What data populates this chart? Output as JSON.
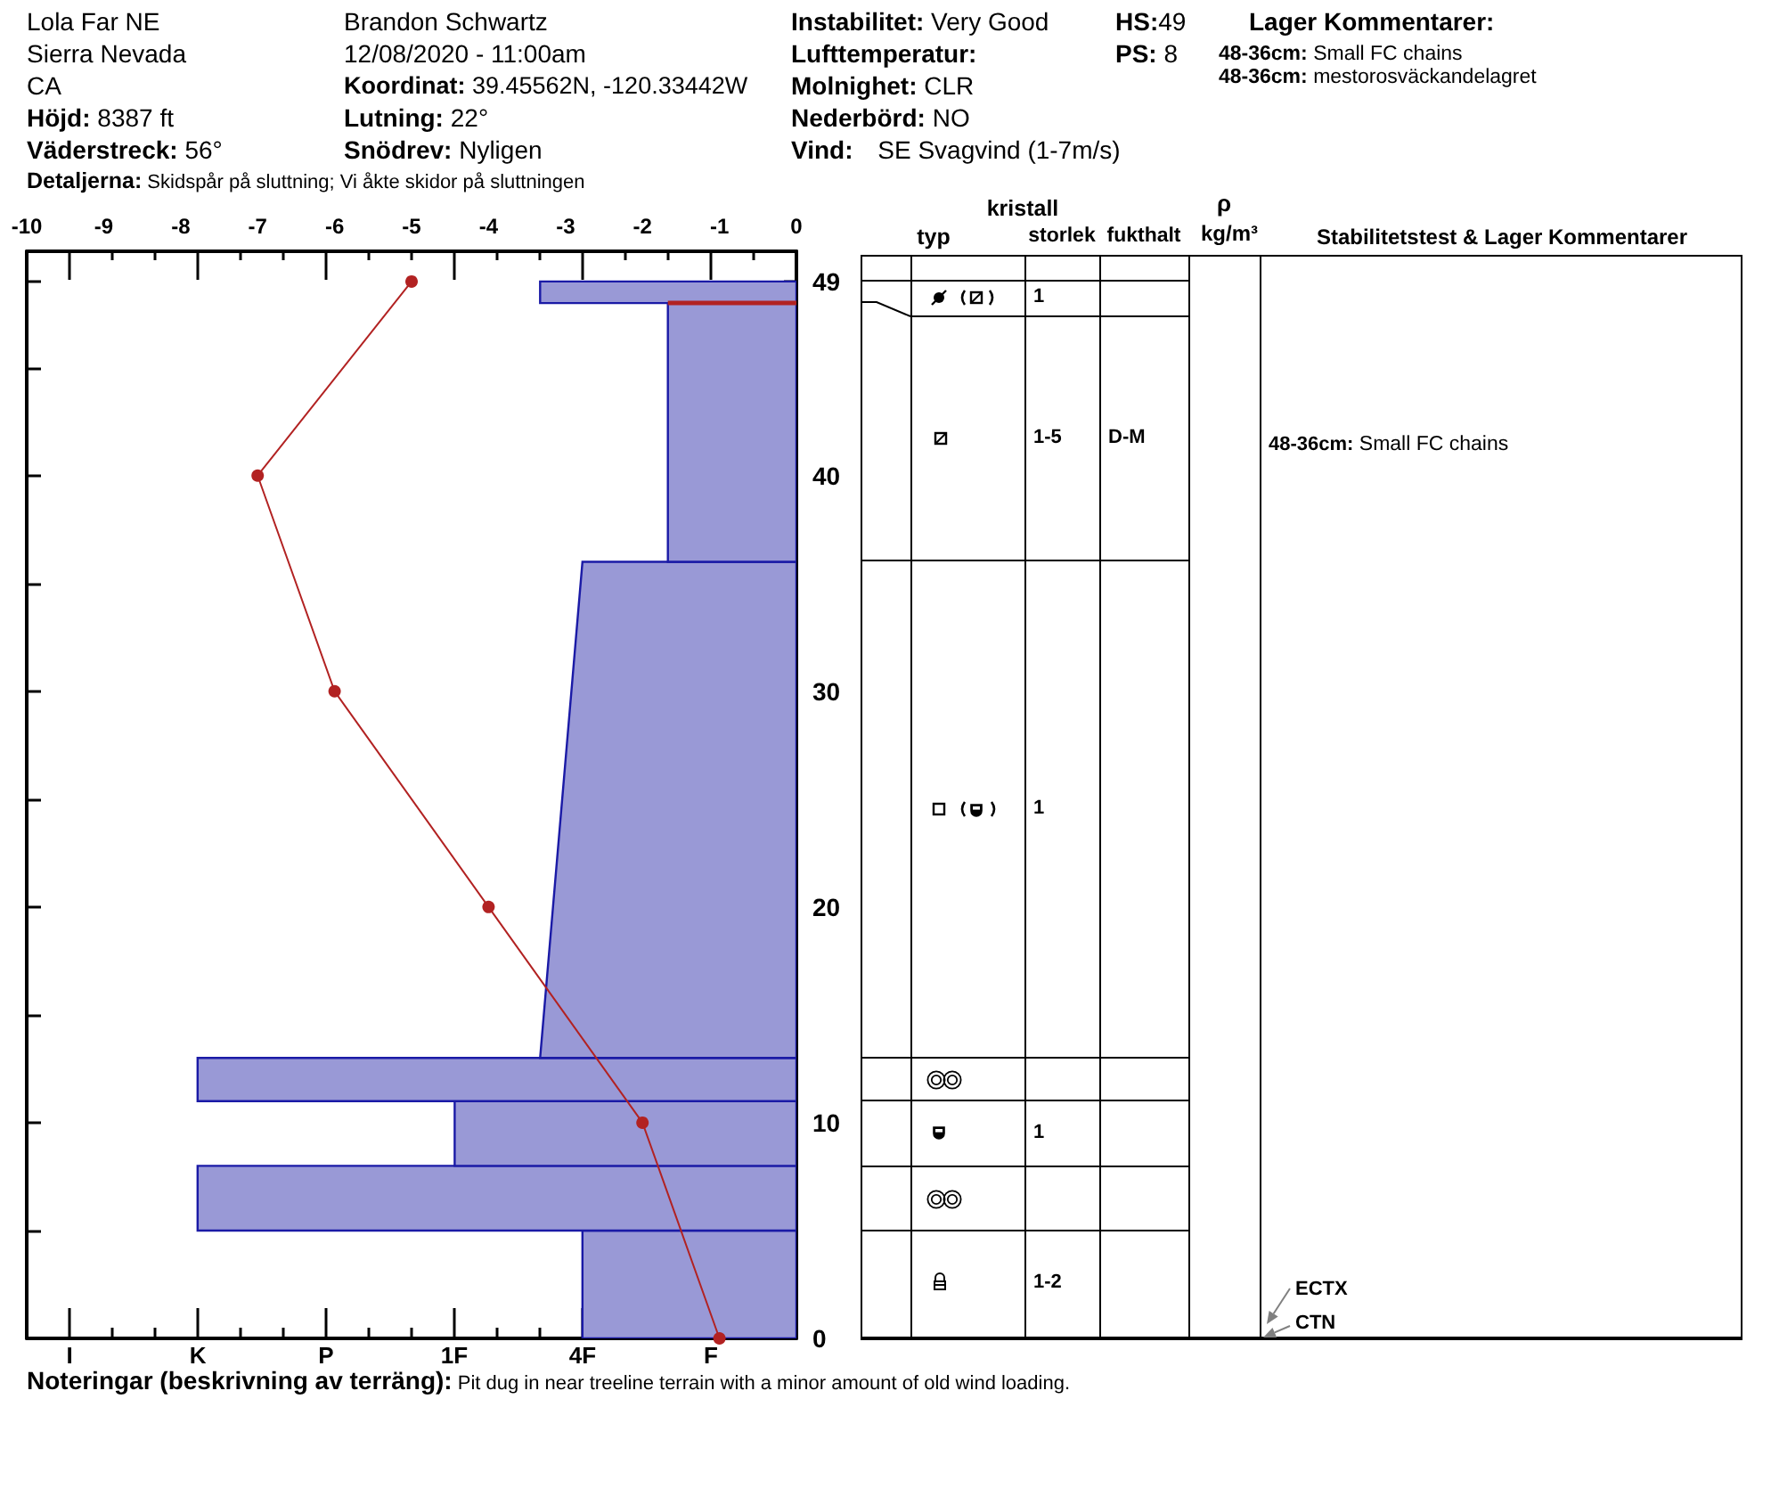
{
  "chart_data": [
    {
      "type": "other",
      "annotations": [
        "Lola Far NE",
        "Sierra Nevada",
        "CA",
        "Höjd: 8387 ft",
        "Väderstreck: 56°",
        "Detaljerna: Skidspår på sluttning; Vi åkte skidor på sluttningen",
        "Brandon Schwartz",
        "12/08/2020 - 11:00am",
        "Koordinat: 39.45562N, -120.33442W",
        "Lutning: 22°",
        "Snödrev: Nyligen",
        "Instabilitet: Very Good",
        "Lufttemperatur:",
        "Molnighet: CLR",
        "Nederbörd: NO",
        "Vind: SE Svagvind (1-7m/s)",
        "HS:49",
        "PS: 8",
        "Lager Kommentarer:",
        "48-36cm: Small FC chains",
        "48-36cm: mestorosväckandelagret"
      ]
    },
    {
      "type": "line",
      "categories": [
        null,
        "I",
        null,
        null,
        "K",
        null,
        null,
        "P",
        null,
        null,
        "1F",
        null,
        null,
        "4F",
        null,
        null,
        "F",
        null,
        null
      ],
      "x2lim": [
        -10,
        0
      ],
      "x2ticks": [
        -10,
        -9,
        -8,
        -7,
        -6,
        -5,
        -4,
        -3,
        -2,
        -1,
        0
      ],
      "ylim": [
        0,
        50.4
      ],
      "yticks": [
        0,
        {
          "value": 5,
          "label": null
        },
        10,
        {
          "value": 15,
          "label": null
        },
        20,
        {
          "value": 25,
          "label": null
        },
        30,
        {
          "value": 35,
          "label": null
        },
        40,
        {
          "value": 45,
          "label": null
        },
        49
      ],
      "series": [
        {
          "type": "area",
          "axis": "x2",
          "color": "#9999d6",
          "x": [
            0,
            -2.78,
            -2.78,
            0
          ],
          "values": [
            0,
            0,
            5,
            5
          ]
        },
        {
          "type": "area",
          "axis": "x2",
          "color": "#9999d6",
          "x": [
            0,
            -7.78,
            -7.78,
            0
          ],
          "values": [
            5,
            5,
            8,
            8
          ]
        },
        {
          "type": "area",
          "axis": "x2",
          "color": "#9999d6",
          "x": [
            0,
            -4.44,
            -4.44,
            0
          ],
          "values": [
            8,
            8,
            11,
            11
          ]
        },
        {
          "type": "area",
          "axis": "x2",
          "color": "#9999d6",
          "x": [
            0,
            -7.78,
            -7.78,
            0
          ],
          "values": [
            11,
            11,
            13,
            13
          ]
        },
        {
          "type": "area",
          "axis": "x2",
          "color": "#9999d6",
          "x": [
            0,
            -3.33,
            -2.78,
            0
          ],
          "values": [
            13,
            13,
            36,
            36
          ]
        },
        {
          "type": "area",
          "axis": "x2",
          "color": "#9999d6",
          "x": [
            0,
            -1.67,
            -1.67,
            0
          ],
          "values": [
            36,
            36,
            48,
            48
          ]
        },
        {
          "type": "area",
          "axis": "x2",
          "color": "#9999d6",
          "x": [
            0,
            -3.33,
            -3.33,
            0
          ],
          "values": [
            48,
            48,
            49,
            49
          ]
        },
        {
          "type": "line",
          "axis": "x2",
          "marker": "none",
          "color": "#b22222",
          "x": [
            -1.67,
            0
          ],
          "values": [
            48,
            48
          ]
        },
        {
          "type": "line",
          "axis": "x2",
          "marker": "circle",
          "color": "#b22222",
          "x": [
            -1,
            -2,
            -4,
            -6,
            -7,
            -5
          ],
          "values": [
            0,
            10,
            20,
            30,
            40,
            49
          ]
        }
      ],
      "annotations": [
        "Noteringar (beskrivning av terräng): Pit dug in near treeline terrain with a minor amount of old wind loading."
      ]
    },
    {
      "type": "other",
      "annotations": [
        "kristall",
        "typ",
        "storlek",
        "fukthalt",
        "ρ",
        "kg/m³",
        "Stabilitetstest & Lager Kommentarer",
        "1",
        "1-5",
        "D-M",
        "48-36cm: Small FC chains",
        "1",
        "1",
        "1-2",
        "ECTX",
        "CTN"
      ]
    }
  ]
}
